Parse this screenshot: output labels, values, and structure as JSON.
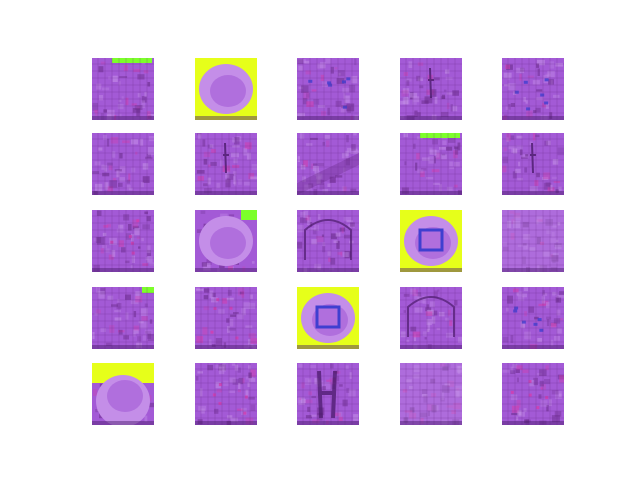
{
  "figure": {
    "background": "#ffffff",
    "grid_rows": 5,
    "grid_cols": 5
  },
  "palette": {
    "base_purple": "#a35ad6",
    "light_purple": "#c48ee8",
    "dark_purple": "#6a2a8a",
    "deep_violet": "#4a1a6a",
    "blue": "#3f3fd0",
    "yellow_green": "#e6ff1a",
    "green": "#7cff2a",
    "magenta": "#d040b0"
  },
  "tiles": [
    {
      "id": "r1c1",
      "kind": "grid",
      "accent": "green-top"
    },
    {
      "id": "r1c2",
      "kind": "blob",
      "accent": "yellow-border"
    },
    {
      "id": "r1c3",
      "kind": "grid",
      "accent": "blue-marks"
    },
    {
      "id": "r1c4",
      "kind": "grid",
      "accent": "dark-stroke"
    },
    {
      "id": "r1c5",
      "kind": "grid",
      "accent": "blue-marks"
    },
    {
      "id": "r2c1",
      "kind": "grid",
      "accent": "none"
    },
    {
      "id": "r2c2",
      "kind": "grid",
      "accent": "dark-stroke"
    },
    {
      "id": "r2c3",
      "kind": "grid",
      "accent": "diagonal-band"
    },
    {
      "id": "r2c4",
      "kind": "grid",
      "accent": "green-top"
    },
    {
      "id": "r2c5",
      "kind": "grid",
      "accent": "dark-stroke"
    },
    {
      "id": "r3c1",
      "kind": "grid",
      "accent": "magenta-marks"
    },
    {
      "id": "r3c2",
      "kind": "blob",
      "accent": "green-corner"
    },
    {
      "id": "r3c3",
      "kind": "grid",
      "accent": "arch"
    },
    {
      "id": "r3c4",
      "kind": "blob",
      "accent": "yellow-green-border"
    },
    {
      "id": "r3c5",
      "kind": "grid",
      "accent": "light-wash"
    },
    {
      "id": "r4c1",
      "kind": "grid",
      "accent": "green-corner"
    },
    {
      "id": "r4c2",
      "kind": "grid",
      "accent": "magenta-marks"
    },
    {
      "id": "r4c3",
      "kind": "blob",
      "accent": "yellow-green-border"
    },
    {
      "id": "r4c4",
      "kind": "grid",
      "accent": "arch"
    },
    {
      "id": "r4c5",
      "kind": "grid",
      "accent": "blue-marks"
    },
    {
      "id": "r5c1",
      "kind": "blob",
      "accent": "yellow-top"
    },
    {
      "id": "r5c2",
      "kind": "grid",
      "accent": "magenta-marks"
    },
    {
      "id": "r5c3",
      "kind": "grid",
      "accent": "dark-figure"
    },
    {
      "id": "r5c4",
      "kind": "grid",
      "accent": "light-wash"
    },
    {
      "id": "r5c5",
      "kind": "grid",
      "accent": "magenta-marks"
    }
  ]
}
